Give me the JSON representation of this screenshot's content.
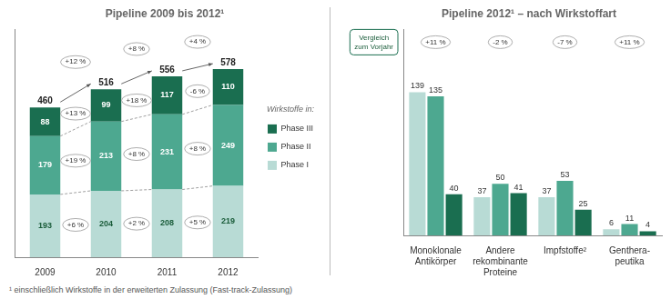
{
  "chart_data": [
    {
      "type": "bar",
      "stacked": true,
      "title": "Pipeline 2009 bis 2012¹",
      "categories": [
        "2009",
        "2010",
        "2011",
        "2012"
      ],
      "series": [
        {
          "name": "Phase I",
          "color": "#b8dbd5",
          "values": [
            193,
            204,
            208,
            219
          ],
          "change": [
            "+6 %",
            "+2 %",
            "+5 %"
          ]
        },
        {
          "name": "Phase II",
          "color": "#4da890",
          "values": [
            179,
            213,
            231,
            249
          ],
          "change": [
            "+19 %",
            "+8 %",
            "+8 %"
          ]
        },
        {
          "name": "Phase III",
          "color": "#1a6e50",
          "values": [
            88,
            99,
            117,
            110
          ],
          "change": [
            "+13 %",
            "+18 %",
            "-6 %"
          ]
        }
      ],
      "totals": [
        460,
        516,
        556,
        578
      ],
      "total_change": [
        "+12 %",
        "+8 %",
        "+4 %"
      ],
      "ylim": [
        0,
        700
      ],
      "grid": false,
      "data_labels": true,
      "tick_labels": "x",
      "legend": "right",
      "legend_title": "Wirkstoffe in:",
      "footnote": "¹ einschließlich Wirkstoffe in der erweiterten Zulassung (Fast-track-Zulassung)"
    },
    {
      "type": "bar",
      "title": "Pipeline 2012¹ – nach Wirkstoffart",
      "categories": [
        "Monoklonale\nAntikörper",
        "Andere\nrekombinante\nProteine",
        "Impfstoffe²",
        "Genthera-\npeutika"
      ],
      "series": [
        {
          "name": "Phase I",
          "color": "#b8dbd5",
          "values": [
            139,
            37,
            37,
            6
          ]
        },
        {
          "name": "Phase II",
          "color": "#4da890",
          "values": [
            135,
            50,
            53,
            11
          ]
        },
        {
          "name": "Phase III",
          "color": "#1a6e50",
          "values": [
            40,
            41,
            25,
            4
          ]
        }
      ],
      "group_change": [
        "+11 %",
        "-2 %",
        "-7 %",
        "+11 %"
      ],
      "annotations": [
        "Vergleich\nzum Vorjahr"
      ],
      "ylim": [
        0,
        200
      ],
      "grid": false,
      "data_labels": true,
      "tick_labels": "x"
    }
  ]
}
